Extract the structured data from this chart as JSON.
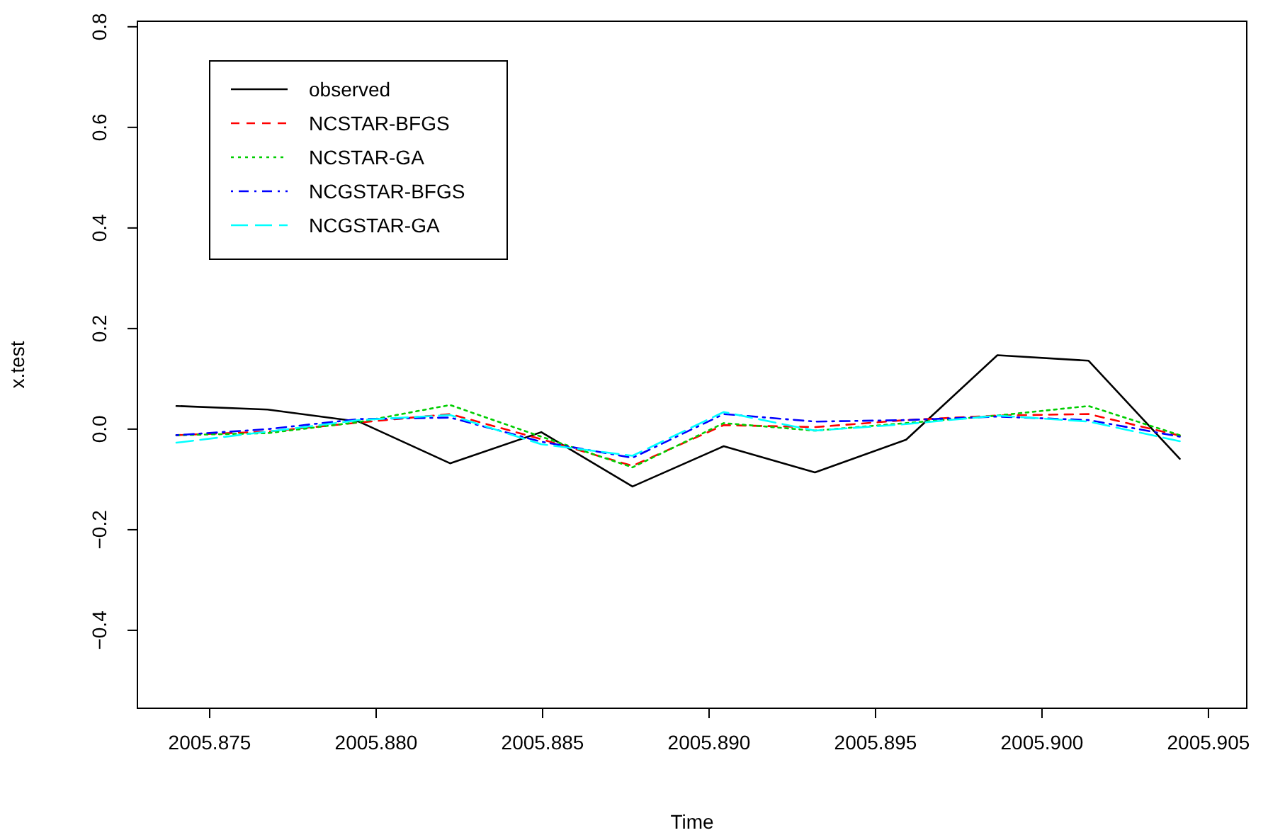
{
  "chart_data": {
    "type": "line",
    "xlabel": "Time",
    "ylabel": "x.test",
    "x": [
      2005.874,
      2005.87674,
      2005.87948,
      2005.88222,
      2005.88496,
      2005.8877,
      2005.89044,
      2005.89318,
      2005.89592,
      2005.89866,
      2005.9014,
      2005.90414
    ],
    "xlim": [
      2005.87283,
      2005.90615
    ],
    "xticks": [
      2005.875,
      {
        "value": 2005.88,
        "label": "2005.880"
      },
      2005.885,
      {
        "value": 2005.89,
        "label": "2005.890"
      },
      2005.895,
      {
        "value": 2005.9,
        "label": "2005.900"
      },
      2005.905
    ],
    "ylim": [
      -0.555,
      0.811
    ],
    "yticks": [
      {
        "value": -0.4,
        "label": "−0.4"
      },
      {
        "value": -0.2,
        "label": "−0.2"
      },
      {
        "value": 0,
        "label": "0.0"
      },
      0.2,
      0.4,
      0.6,
      0.8
    ],
    "legend": "top left",
    "grid": false,
    "series": [
      {
        "name": "observed",
        "color": "#000000",
        "line_style": "solid",
        "values": [
          0.046,
          0.039,
          0.015,
          -0.068,
          -0.006,
          -0.114,
          -0.034,
          -0.086,
          -0.021,
          0.147,
          0.136,
          -0.059
        ]
      },
      {
        "name": "NCSTAR-BFGS",
        "color": "#ff0000",
        "line_style": "dashed",
        "values": [
          -0.012,
          -0.005,
          0.013,
          0.03,
          -0.02,
          -0.073,
          0.008,
          0.004,
          0.018,
          0.027,
          0.03,
          -0.013
        ]
      },
      {
        "name": "NCSTAR-GA",
        "color": "#00cd00",
        "line_style": "dotted",
        "values": [
          -0.012,
          -0.008,
          0.014,
          0.048,
          -0.015,
          -0.076,
          0.012,
          -0.003,
          0.012,
          0.027,
          0.046,
          -0.012
        ]
      },
      {
        "name": "NCGSTAR-BFGS",
        "color": "#0000ff",
        "line_style": "dashdot",
        "values": [
          -0.012,
          0.0,
          0.02,
          0.023,
          -0.025,
          -0.057,
          0.03,
          0.015,
          0.018,
          0.025,
          0.018,
          -0.015
        ]
      },
      {
        "name": "NCGSTAR-GA",
        "color": "#00ffff",
        "line_style": "longdash",
        "values": [
          -0.027,
          -0.005,
          0.018,
          0.028,
          -0.03,
          -0.053,
          0.034,
          -0.003,
          0.01,
          0.027,
          0.015,
          -0.024
        ]
      }
    ]
  }
}
